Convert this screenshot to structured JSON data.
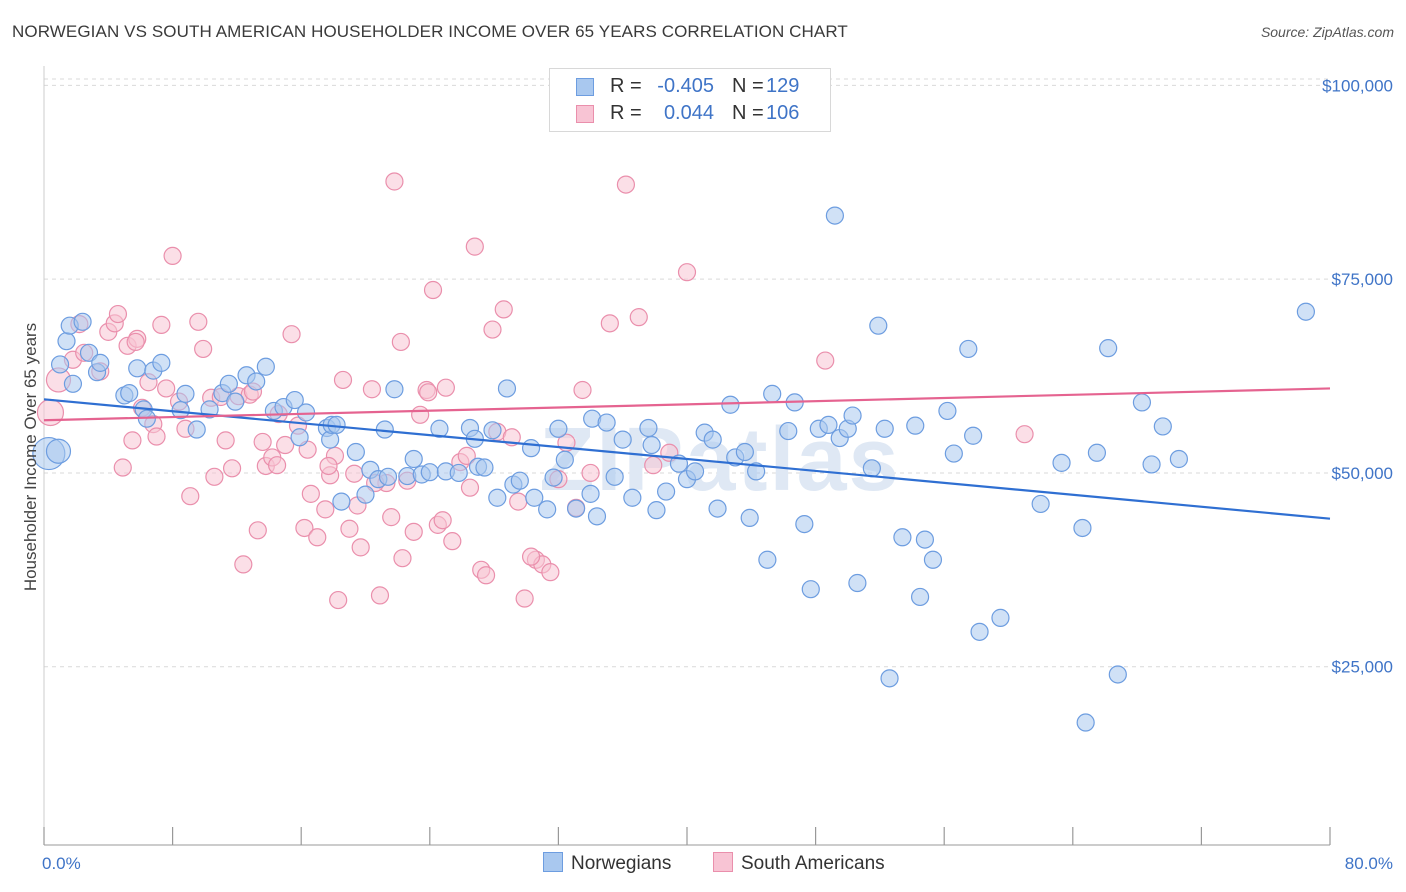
{
  "title": "NORWEGIAN VS SOUTH AMERICAN HOUSEHOLDER INCOME OVER 65 YEARS CORRELATION CHART",
  "source": "Source: ZipAtlas.com",
  "watermark": "ZIPatlas",
  "legend": {
    "rows": [
      {
        "r_label": "R =",
        "r_value": "-0.405",
        "n_label": "N =",
        "n_value": "129",
        "color": "#a9c8ef",
        "border": "#6d9de0"
      },
      {
        "r_label": "R =",
        "r_value": "0.044",
        "n_label": "N =",
        "n_value": "106",
        "color": "#f8c4d4",
        "border": "#ea8fac"
      }
    ]
  },
  "bottom_legend": {
    "items": [
      {
        "label": "Norwegians",
        "color": "#a9c8ef",
        "border": "#6d9de0"
      },
      {
        "label": "South Americans",
        "color": "#f8c4d4",
        "border": "#ea8fac"
      }
    ]
  },
  "chart_data": {
    "type": "scatter",
    "title": "NORWEGIAN VS SOUTH AMERICAN HOUSEHOLDER INCOME OVER 65 YEARS CORRELATION CHART",
    "xlabel": "",
    "ylabel": "Householder Income Over 65 years",
    "x_tick_labels": [
      "0.0%",
      "80.0%"
    ],
    "y_tick_labels": [
      "$25,000",
      "$50,000",
      "$75,000",
      "$100,000"
    ],
    "y_ticks": [
      25000,
      50000,
      75000,
      100000
    ],
    "xlim": [
      0,
      80
    ],
    "ylim": [
      2000,
      102500
    ],
    "grid": true,
    "series": [
      {
        "name": "Norwegians",
        "color": "#6d9de0",
        "fill": "#a9c8ef",
        "trend": {
          "x": [
            0,
            80
          ],
          "y": [
            59500,
            44100
          ],
          "color": "#2f6fd2"
        },
        "points": [
          [
            0.3,
            52500
          ],
          [
            1.0,
            64000
          ],
          [
            1.4,
            67000
          ],
          [
            1.6,
            69000
          ],
          [
            2.4,
            69500
          ],
          [
            2.8,
            65500
          ],
          [
            3.3,
            63000
          ],
          [
            3.5,
            64200
          ],
          [
            5.0,
            60000
          ],
          [
            5.3,
            60300
          ],
          [
            5.8,
            63500
          ],
          [
            6.2,
            58200
          ],
          [
            6.4,
            57000
          ],
          [
            6.8,
            63200
          ],
          [
            7.3,
            64200
          ],
          [
            8.5,
            58100
          ],
          [
            8.8,
            60200
          ],
          [
            9.5,
            55600
          ],
          [
            10.3,
            58200
          ],
          [
            11.1,
            60300
          ],
          [
            11.5,
            61500
          ],
          [
            11.9,
            59200
          ],
          [
            12.6,
            62600
          ],
          [
            13.2,
            61800
          ],
          [
            13.8,
            63700
          ],
          [
            14.3,
            58000
          ],
          [
            14.9,
            58500
          ],
          [
            15.6,
            59400
          ],
          [
            15.9,
            54600
          ],
          [
            16.3,
            57800
          ],
          [
            17.6,
            55800
          ],
          [
            17.8,
            54300
          ],
          [
            17.9,
            56200
          ],
          [
            18.2,
            56200
          ],
          [
            18.5,
            46300
          ],
          [
            19.4,
            52700
          ],
          [
            20.0,
            47200
          ],
          [
            20.3,
            50400
          ],
          [
            20.8,
            49200
          ],
          [
            21.2,
            55600
          ],
          [
            21.4,
            49500
          ],
          [
            21.8,
            60800
          ],
          [
            22.6,
            49600
          ],
          [
            23.0,
            51800
          ],
          [
            23.5,
            49800
          ],
          [
            24.0,
            50100
          ],
          [
            24.6,
            55700
          ],
          [
            25.0,
            50200
          ],
          [
            25.8,
            50000
          ],
          [
            26.5,
            55800
          ],
          [
            26.8,
            54400
          ],
          [
            27.0,
            50800
          ],
          [
            27.4,
            50700
          ],
          [
            27.9,
            55500
          ],
          [
            28.2,
            46800
          ],
          [
            28.8,
            60900
          ],
          [
            29.2,
            48500
          ],
          [
            29.6,
            49000
          ],
          [
            30.3,
            53200
          ],
          [
            30.5,
            46800
          ],
          [
            31.3,
            45300
          ],
          [
            31.7,
            49400
          ],
          [
            32.0,
            55700
          ],
          [
            32.4,
            51700
          ],
          [
            33.1,
            45400
          ],
          [
            34.0,
            47300
          ],
          [
            34.1,
            57000
          ],
          [
            34.4,
            44400
          ],
          [
            35.0,
            56500
          ],
          [
            35.5,
            49500
          ],
          [
            36.0,
            54300
          ],
          [
            36.6,
            46800
          ],
          [
            37.6,
            55800
          ],
          [
            37.8,
            53600
          ],
          [
            38.1,
            45200
          ],
          [
            38.7,
            47600
          ],
          [
            39.5,
            51200
          ],
          [
            40.0,
            49200
          ],
          [
            40.5,
            50200
          ],
          [
            41.1,
            55200
          ],
          [
            41.6,
            54300
          ],
          [
            41.9,
            45400
          ],
          [
            42.7,
            58800
          ],
          [
            43.0,
            52000
          ],
          [
            43.6,
            52700
          ],
          [
            43.9,
            44200
          ],
          [
            44.3,
            50200
          ],
          [
            45.0,
            38800
          ],
          [
            45.3,
            60200
          ],
          [
            46.3,
            55400
          ],
          [
            46.7,
            59100
          ],
          [
            47.3,
            43400
          ],
          [
            47.7,
            35000
          ],
          [
            48.2,
            55700
          ],
          [
            48.8,
            56200
          ],
          [
            49.2,
            83200
          ],
          [
            49.5,
            54500
          ],
          [
            50.0,
            55700
          ],
          [
            50.3,
            57400
          ],
          [
            50.6,
            35800
          ],
          [
            51.5,
            50600
          ],
          [
            51.9,
            69000
          ],
          [
            52.3,
            55700
          ],
          [
            53.4,
            41700
          ],
          [
            54.2,
            56100
          ],
          [
            54.5,
            34000
          ],
          [
            54.8,
            41400
          ],
          [
            55.3,
            38800
          ],
          [
            56.2,
            58000
          ],
          [
            56.6,
            52500
          ],
          [
            57.5,
            66000
          ],
          [
            57.8,
            54800
          ],
          [
            58.2,
            29500
          ],
          [
            59.5,
            31300
          ],
          [
            62.0,
            46000
          ],
          [
            63.3,
            51300
          ],
          [
            64.6,
            42900
          ],
          [
            65.5,
            52600
          ],
          [
            66.2,
            66100
          ],
          [
            66.8,
            24000
          ],
          [
            68.3,
            59100
          ],
          [
            68.9,
            51100
          ],
          [
            69.6,
            56000
          ],
          [
            70.6,
            51800
          ],
          [
            78.5,
            70800
          ],
          [
            52.6,
            23500
          ],
          [
            64.8,
            17800
          ],
          [
            1.8,
            61500
          ],
          [
            0.9,
            52800
          ]
        ]
      },
      {
        "name": "South Americans",
        "color": "#ea8fac",
        "fill": "#f8c4d4",
        "trend": {
          "x": [
            0,
            80
          ],
          "y": [
            56800,
            60900
          ],
          "color": "#e56390"
        },
        "points": [
          [
            0.4,
            57800
          ],
          [
            0.9,
            62000
          ],
          [
            1.8,
            64600
          ],
          [
            2.2,
            69200
          ],
          [
            2.5,
            65500
          ],
          [
            3.5,
            63100
          ],
          [
            4.0,
            68200
          ],
          [
            4.4,
            69300
          ],
          [
            4.6,
            70500
          ],
          [
            4.9,
            50700
          ],
          [
            5.2,
            66400
          ],
          [
            5.5,
            54200
          ],
          [
            5.8,
            67300
          ],
          [
            6.1,
            58400
          ],
          [
            6.5,
            61700
          ],
          [
            6.8,
            56300
          ],
          [
            7.0,
            54700
          ],
          [
            7.3,
            69100
          ],
          [
            8.0,
            78000
          ],
          [
            8.4,
            59200
          ],
          [
            8.8,
            55700
          ],
          [
            9.1,
            47000
          ],
          [
            9.6,
            69500
          ],
          [
            9.9,
            66000
          ],
          [
            10.4,
            59700
          ],
          [
            10.6,
            49500
          ],
          [
            11.0,
            59800
          ],
          [
            11.3,
            54200
          ],
          [
            11.7,
            50600
          ],
          [
            12.1,
            59900
          ],
          [
            12.4,
            38200
          ],
          [
            12.8,
            60100
          ],
          [
            13.3,
            42600
          ],
          [
            13.8,
            50900
          ],
          [
            14.2,
            52000
          ],
          [
            14.6,
            57600
          ],
          [
            15.0,
            53600
          ],
          [
            15.4,
            67900
          ],
          [
            15.8,
            56100
          ],
          [
            16.2,
            42900
          ],
          [
            16.6,
            47300
          ],
          [
            17.0,
            41700
          ],
          [
            17.5,
            45300
          ],
          [
            17.8,
            49700
          ],
          [
            18.1,
            52200
          ],
          [
            18.6,
            62000
          ],
          [
            19.0,
            42800
          ],
          [
            19.3,
            49900
          ],
          [
            19.7,
            40400
          ],
          [
            20.4,
            60800
          ],
          [
            20.9,
            34200
          ],
          [
            21.3,
            48700
          ],
          [
            21.8,
            87600
          ],
          [
            22.2,
            66900
          ],
          [
            22.6,
            49000
          ],
          [
            23.0,
            42400
          ],
          [
            23.4,
            57500
          ],
          [
            23.8,
            60700
          ],
          [
            24.2,
            73600
          ],
          [
            24.5,
            43300
          ],
          [
            25.0,
            61000
          ],
          [
            25.4,
            41200
          ],
          [
            25.9,
            51400
          ],
          [
            26.3,
            52200
          ],
          [
            26.8,
            79200
          ],
          [
            27.2,
            37500
          ],
          [
            27.5,
            36800
          ],
          [
            27.9,
            68500
          ],
          [
            28.2,
            55300
          ],
          [
            28.6,
            71100
          ],
          [
            29.1,
            54600
          ],
          [
            29.5,
            46300
          ],
          [
            29.9,
            33800
          ],
          [
            30.6,
            38800
          ],
          [
            31.0,
            38200
          ],
          [
            31.5,
            37200
          ],
          [
            32.0,
            49200
          ],
          [
            33.1,
            45500
          ],
          [
            33.5,
            60700
          ],
          [
            34.0,
            50000
          ],
          [
            35.2,
            69300
          ],
          [
            36.2,
            87200
          ],
          [
            37.0,
            70100
          ],
          [
            37.9,
            51000
          ],
          [
            38.9,
            52600
          ],
          [
            40.0,
            75900
          ],
          [
            41.1,
            99700
          ],
          [
            48.6,
            64500
          ],
          [
            61.0,
            55000
          ],
          [
            13.0,
            60500
          ],
          [
            13.6,
            54000
          ],
          [
            14.5,
            51000
          ],
          [
            16.4,
            53000
          ],
          [
            17.7,
            50900
          ],
          [
            19.5,
            45800
          ],
          [
            20.6,
            48700
          ],
          [
            21.6,
            44300
          ],
          [
            22.3,
            39000
          ],
          [
            23.9,
            60400
          ],
          [
            24.8,
            43900
          ],
          [
            26.5,
            48100
          ],
          [
            30.3,
            39200
          ],
          [
            32.5,
            53900
          ],
          [
            18.3,
            33600
          ],
          [
            5.7,
            66900
          ],
          [
            7.6,
            60900
          ]
        ]
      }
    ]
  }
}
